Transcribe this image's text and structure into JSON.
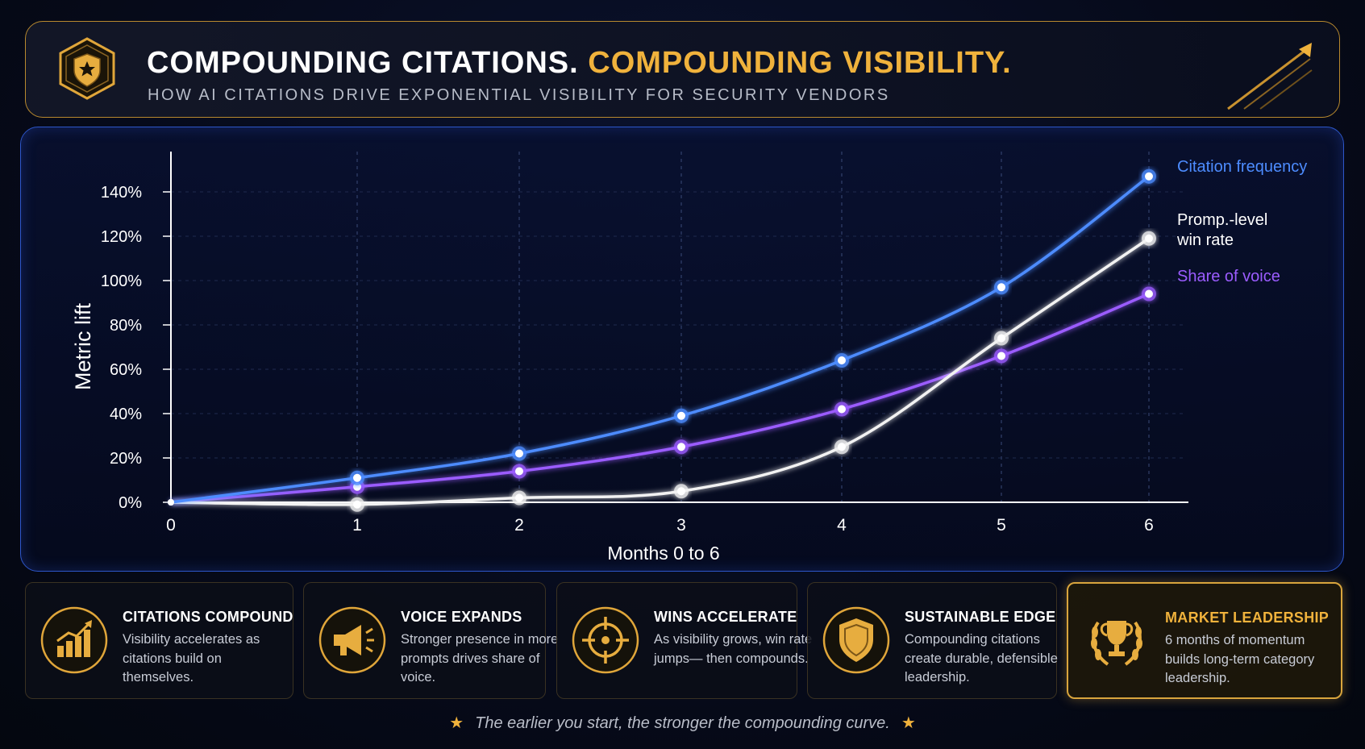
{
  "header": {
    "title_white": "COMPOUNDING CITATIONS.",
    "title_gold": "COMPOUNDING VISIBILITY.",
    "subtitle": "HOW AI CITATIONS DRIVE EXPONENTIAL VISIBILITY FOR SECURITY VENDORS",
    "logo_icon": "shield-star-icon",
    "decoration_icon": "rising-arrow-icon"
  },
  "chart_data": {
    "type": "line",
    "xlabel": "Months 0 to 6",
    "ylabel": "Metric lift",
    "x": [
      0,
      1,
      2,
      3,
      4,
      5,
      6
    ],
    "ylim": [
      0,
      150
    ],
    "yticks": [
      "0%",
      "20%",
      "40%",
      "60%",
      "80%",
      "100%",
      "120%",
      "140%"
    ],
    "grid": true,
    "legend_position": "right, beside line ends",
    "series": [
      {
        "name": "Citation frequency",
        "color": "#4d8cff",
        "values": [
          0,
          11,
          22,
          39,
          64,
          97,
          147
        ]
      },
      {
        "name": "Promp.-level win rate",
        "color": "#f2f2f2",
        "values": [
          0,
          -1,
          2,
          5,
          25,
          74,
          119
        ]
      },
      {
        "name": "Share of voice",
        "color": "#9b5cff",
        "values": [
          0,
          7,
          14,
          25,
          42,
          66,
          94
        ]
      }
    ]
  },
  "cards": [
    {
      "title": "CITATIONS COMPOUND",
      "desc": "Visibility accelerates as citations build on themselves.",
      "icon": "bar-chart-growth-icon"
    },
    {
      "title": "VOICE EXPANDS",
      "desc": "Stronger presence in more prompts drives share of voice.",
      "icon": "megaphone-icon"
    },
    {
      "title": "WINS ACCELERATE",
      "desc": "As visibility grows, win rate jumps— then compounds.",
      "icon": "target-crosshair-icon"
    },
    {
      "title": "SUSTAINABLE EDGE",
      "desc": "Compounding citations create durable, defensible leadership.",
      "icon": "shield-icon"
    },
    {
      "title": "MARKET LEADERSHIP",
      "desc": "6 months of momentum builds long-term category leadership.",
      "icon": "trophy-laurel-icon"
    }
  ],
  "footer": {
    "text": "The earlier you start, the stronger the compounding curve."
  },
  "colors": {
    "gold": "#f0b23c",
    "blue": "#4d8cff",
    "purple": "#9b5cff",
    "white": "#f2f2f2"
  }
}
